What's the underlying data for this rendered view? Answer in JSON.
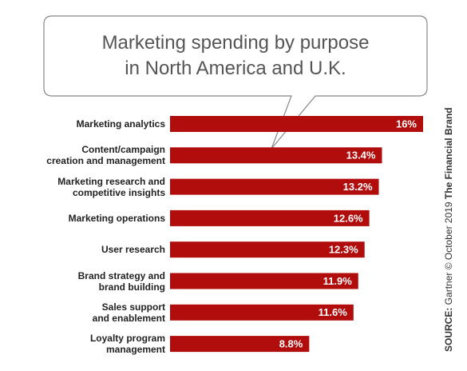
{
  "chart_data": {
    "type": "bar",
    "orientation": "horizontal",
    "title": "Marketing spending by purpose\nin North America and U.K.",
    "categories": [
      "Marketing analytics",
      "Content/campaign\ncreation and management",
      "Marketing research and\ncompetitive insights",
      "Marketing operations",
      "User research",
      "Brand strategy and\nbrand building",
      "Sales support\nand enablement",
      "Loyalty program\nmanagement"
    ],
    "values": [
      16,
      13.4,
      13.2,
      12.6,
      12.3,
      11.9,
      11.6,
      8.8
    ],
    "value_labels": [
      "16%",
      "13.4%",
      "13.2%",
      "12.6%",
      "12.3%",
      "11.9%",
      "11.6%",
      "8.8%"
    ],
    "color": "#b10d0d",
    "source_label": "SOURCE:",
    "source": "Gartner © October 2019",
    "brand": "The Financial Brand"
  }
}
